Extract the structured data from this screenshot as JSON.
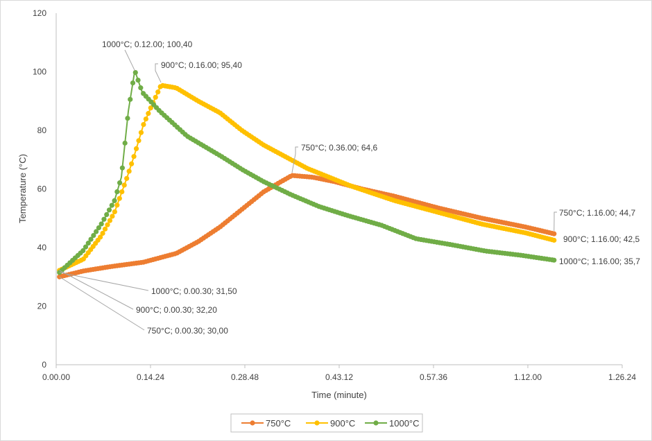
{
  "chart_data": {
    "type": "line",
    "title": "",
    "xlabel": "Time (minute)",
    "ylabel": "Temperature (°C)",
    "x_unit": "seconds",
    "xlim": [
      0,
      5184
    ],
    "ylim": [
      0,
      120
    ],
    "x_ticks": [
      0,
      864,
      1728,
      2592,
      3456,
      4320,
      5184
    ],
    "x_tick_labels": [
      "0.00.00",
      "0.14.24",
      "0.28.48",
      "0.43.12",
      "0.57.36",
      "1.12.00",
      "1.26.24"
    ],
    "y_ticks": [
      0,
      20,
      40,
      60,
      80,
      100,
      120
    ],
    "y_tick_labels": [
      "0",
      "20",
      "40",
      "60",
      "80",
      "100",
      "120"
    ],
    "grid": false,
    "legend_position": "bottom",
    "series": [
      {
        "name": "750°C",
        "color": "#ED7D31",
        "x": [
          30,
          250,
          500,
          800,
          1100,
          1300,
          1500,
          1700,
          1900,
          2060,
          2160,
          2350,
          2550,
          2800,
          3100,
          3500,
          3900,
          4300,
          4560
        ],
        "y": [
          30,
          32,
          33.5,
          35,
          38,
          42,
          47,
          53,
          59,
          62.5,
          64.6,
          64,
          62.5,
          60,
          57.5,
          53.5,
          50,
          47,
          44.7
        ]
      },
      {
        "name": "900°C",
        "color": "#FFC000",
        "x": [
          30,
          248,
          413,
          534,
          650,
          720,
          800,
          870,
          960,
          1100,
          1300,
          1500,
          1700,
          1900,
          2100,
          2300,
          2500,
          2700,
          2900,
          3100,
          3500,
          3900,
          4300,
          4560
        ],
        "y": [
          32.2,
          36,
          44,
          52,
          64,
          72,
          82,
          88,
          95.4,
          94.5,
          90,
          86,
          80,
          75,
          71,
          67,
          64,
          61,
          58.5,
          56,
          52,
          48,
          45,
          42.5
        ]
      },
      {
        "name": "1000°C",
        "color": "#70AD47",
        "x": [
          30,
          248,
          413,
          534,
          597,
          661,
          720,
          788,
          947,
          1200,
          1518,
          1709,
          1900,
          2154,
          2408,
          2662,
          2980,
          3297,
          3615,
          3933,
          4250,
          4560
        ],
        "y": [
          31.5,
          39,
          48,
          56,
          64,
          86.6,
          100.4,
          93,
          86.6,
          78,
          71,
          66.5,
          62.5,
          58,
          54,
          51,
          47.6,
          43,
          41,
          38.8,
          37.4,
          35.7
        ]
      }
    ],
    "annotations": [
      {
        "text": "1000°C; 0.12.00; 100,40",
        "series": 2,
        "x": 720,
        "y": 100.4
      },
      {
        "text": "900°C; 0.16.00; 95,40",
        "series": 1,
        "x": 960,
        "y": 95.4
      },
      {
        "text": "750°C; 0.36.00; 64,6",
        "series": 0,
        "x": 2160,
        "y": 64.6
      },
      {
        "text": "750°C; 1.16.00; 44,7",
        "series": 0,
        "x": 4560,
        "y": 44.7
      },
      {
        "text": "900°C; 1.16.00; 42,5",
        "series": 1,
        "x": 4560,
        "y": 42.5
      },
      {
        "text": "1000°C; 1.16.00; 35,7",
        "series": 2,
        "x": 4560,
        "y": 35.7
      },
      {
        "text": "1000°C; 0.00.30; 31,50",
        "series": 2,
        "x": 30,
        "y": 31.5
      },
      {
        "text": "900°C; 0.00.30; 32,20",
        "series": 1,
        "x": 30,
        "y": 32.2
      },
      {
        "text": "750°C; 0.00.30; 30,00",
        "series": 0,
        "x": 30,
        "y": 30
      }
    ]
  }
}
